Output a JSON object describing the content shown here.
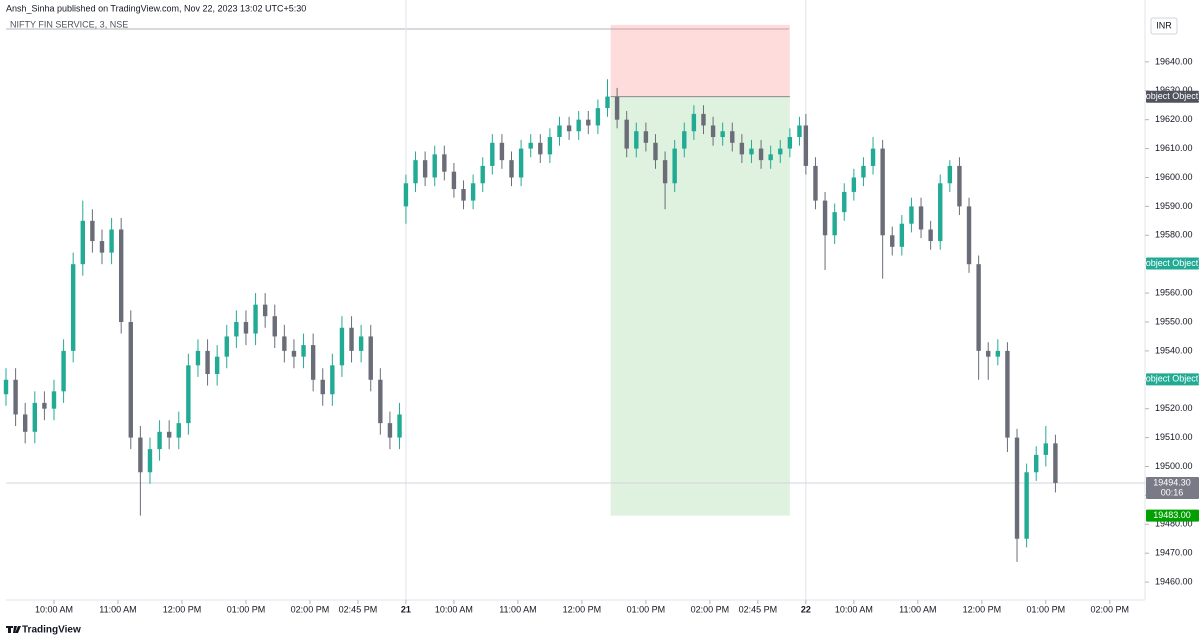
{
  "header": "Ansh_Sinha published on TradingView.com, Nov 22, 2023 13:02 UTC+5:30",
  "footer": "TradingView",
  "chart_data": {
    "type": "candlestick",
    "symbol": "NIFTY FIN SERVICE, 3, NSE",
    "currency": "INR",
    "up_color": "#22ab94",
    "down_color": "#6a6d78",
    "xlim": [
      0,
      356
    ],
    "ylim": [
      19453.8,
      19653.8
    ],
    "xticks": [
      {
        "value": 15,
        "label": "10:00 AM"
      },
      {
        "value": 35,
        "label": "11:00 AM"
      },
      {
        "value": 55,
        "label": "12:00 PM"
      },
      {
        "value": 75,
        "label": "01:00 PM"
      },
      {
        "value": 95,
        "label": "02:00 PM"
      },
      {
        "value": 110,
        "label": "02:45 PM"
      },
      {
        "value": 125,
        "label": "21"
      },
      {
        "value": 140,
        "label": "10:00 AM"
      },
      {
        "value": 160,
        "label": "11:00 AM"
      },
      {
        "value": 180,
        "label": "12:00 PM"
      },
      {
        "value": 200,
        "label": "01:00 PM"
      },
      {
        "value": 220,
        "label": "02:00 PM"
      },
      {
        "value": 235,
        "label": "02:45 PM"
      },
      {
        "value": 250,
        "label": "22"
      },
      {
        "value": 265,
        "label": "10:00 AM"
      },
      {
        "value": 285,
        "label": "11:00 AM"
      },
      {
        "value": 305,
        "label": "12:00 PM"
      },
      {
        "value": 325,
        "label": "01:00 PM"
      },
      {
        "value": 345,
        "label": "02:00 PM"
      }
    ],
    "session_breaks": [
      125,
      250
    ],
    "yticks": [
      {
        "value": 19460,
        "label": "19460.00"
      },
      {
        "value": 19470,
        "label": "19470.00"
      },
      {
        "value": 19480,
        "label": "19480.00"
      },
      {
        "value": 19490,
        "label": "19490.00"
      },
      {
        "value": 19500,
        "label": "19500.00"
      },
      {
        "value": 19510,
        "label": "19510.00"
      },
      {
        "value": 19520,
        "label": "19520.00"
      },
      {
        "value": 19530,
        "label": "19530.00"
      },
      {
        "value": 19540,
        "label": "19540.00"
      },
      {
        "value": 19550,
        "label": "19550.00"
      },
      {
        "value": 19560,
        "label": "19560.00"
      },
      {
        "value": 19570,
        "label": "19570.00"
      },
      {
        "value": 19580,
        "label": "19580.00"
      },
      {
        "value": 19590,
        "label": "19590.00"
      },
      {
        "value": 19600,
        "label": "19600.00"
      },
      {
        "value": 19610,
        "label": "19610.00"
      },
      {
        "value": 19620,
        "label": "19620.00"
      },
      {
        "value": 19630,
        "label": "19630.00"
      },
      {
        "value": 19640,
        "label": "19640.00"
      }
    ],
    "x": [
      0,
      3,
      6,
      9,
      12,
      15,
      18,
      21,
      24,
      27,
      30,
      33,
      36,
      39,
      42,
      45,
      48,
      51,
      54,
      57,
      60,
      63,
      66,
      69,
      72,
      75,
      78,
      81,
      84,
      87,
      90,
      93,
      96,
      99,
      102,
      105,
      108,
      111,
      114,
      117,
      120,
      123,
      125,
      128,
      131,
      134,
      137,
      140,
      143,
      146,
      149,
      152,
      155,
      158,
      161,
      164,
      167,
      170,
      173,
      176,
      179,
      182,
      185,
      188,
      191,
      194,
      197,
      200,
      203,
      206,
      209,
      212,
      215,
      218,
      221,
      224,
      227,
      230,
      233,
      236,
      239,
      242,
      245,
      248,
      250,
      253,
      256,
      259,
      262,
      265,
      268,
      271,
      274,
      277,
      280,
      283,
      286,
      289,
      292,
      295,
      298,
      301,
      304,
      307,
      310,
      313,
      316,
      319,
      322,
      325,
      328
    ],
    "open": [
      19525,
      19530,
      19518,
      19512,
      19522,
      19520,
      19526,
      19540,
      19570,
      19585,
      19578,
      19574,
      19582,
      19550,
      19510,
      19498,
      19506,
      19512,
      19510,
      19515,
      19535,
      19540,
      19532,
      19538,
      19545,
      19550,
      19546,
      19556,
      19552,
      19545,
      19540,
      19538,
      19542,
      19530,
      19525,
      19535,
      19548,
      19540,
      19545,
      19530,
      19515,
      19510,
      19590,
      19598,
      19606,
      19600,
      19608,
      19602,
      19596,
      19592,
      19598,
      19604,
      19612,
      19606,
      19600,
      19610,
      19612,
      19608,
      19614,
      19618,
      19616,
      19620,
      19618,
      19624,
      19628,
      19620,
      19610,
      19616,
      19612,
      19606,
      19598,
      19610,
      19616,
      19622,
      19618,
      19614,
      19616,
      19612,
      19608,
      19610,
      19606,
      19608,
      19610,
      19614,
      19618,
      19604,
      19592,
      19580,
      19588,
      19595,
      19600,
      19604,
      19610,
      19580,
      19576,
      19584,
      19590,
      19582,
      19578,
      19598,
      19604,
      19590,
      19570,
      19540,
      19538,
      19540,
      19510,
      19475,
      19498,
      19504,
      19508
    ],
    "high": [
      19534,
      19534,
      19522,
      19526,
      19526,
      19530,
      19544,
      19574,
      19592,
      19589,
      19582,
      19586,
      19586,
      19554,
      19514,
      19510,
      19516,
      19516,
      19519,
      19539,
      19544,
      19544,
      19542,
      19549,
      19554,
      19554,
      19560,
      19560,
      19556,
      19549,
      19544,
      19546,
      19546,
      19534,
      19539,
      19552,
      19552,
      19549,
      19549,
      19534,
      19519,
      19522,
      19601,
      19609,
      19609,
      19611,
      19611,
      19605,
      19599,
      19601,
      19607,
      19615,
      19615,
      19609,
      19613,
      19615,
      19615,
      19617,
      19621,
      19621,
      19623,
      19623,
      19627,
      19634,
      19631,
      19623,
      19619,
      19619,
      19615,
      19609,
      19613,
      19619,
      19625,
      19625,
      19621,
      19619,
      19619,
      19615,
      19613,
      19613,
      19611,
      19613,
      19617,
      19621,
      19622,
      19607,
      19595,
      19591,
      19598,
      19603,
      19607,
      19614,
      19613,
      19583,
      19587,
      19593,
      19593,
      19585,
      19601,
      19606,
      19607,
      19593,
      19573,
      19543,
      19544,
      19543,
      19513,
      19501,
      19507,
      19514,
      19511
    ],
    "low": [
      19521,
      19514,
      19508,
      19508,
      19516,
      19516,
      19522,
      19536,
      19566,
      19574,
      19570,
      19570,
      19546,
      19506,
      19483,
      19494,
      19502,
      19506,
      19506,
      19511,
      19531,
      19528,
      19528,
      19534,
      19541,
      19542,
      19542,
      19548,
      19541,
      19536,
      19534,
      19534,
      19526,
      19521,
      19521,
      19531,
      19536,
      19536,
      19526,
      19511,
      19506,
      19506,
      19584,
      19595,
      19597,
      19597,
      19599,
      19593,
      19589,
      19589,
      19595,
      19601,
      19603,
      19597,
      19597,
      19607,
      19605,
      19605,
      19611,
      19613,
      19613,
      19615,
      19615,
      19621,
      19617,
      19607,
      19607,
      19609,
      19603,
      19589,
      19595,
      19607,
      19613,
      19615,
      19611,
      19611,
      19609,
      19605,
      19605,
      19603,
      19603,
      19605,
      19607,
      19611,
      19601,
      19589,
      19568,
      19577,
      19585,
      19592,
      19597,
      19601,
      19565,
      19573,
      19573,
      19581,
      19579,
      19575,
      19575,
      19595,
      19587,
      19567,
      19530,
      19530,
      19535,
      19505,
      19467,
      19472,
      19495,
      19500,
      19491
    ],
    "close": [
      19530,
      19518,
      19512,
      19522,
      19520,
      19526,
      19540,
      19570,
      19585,
      19578,
      19574,
      19582,
      19550,
      19510,
      19498,
      19506,
      19512,
      19510,
      19515,
      19535,
      19540,
      19532,
      19538,
      19545,
      19550,
      19546,
      19556,
      19552,
      19545,
      19540,
      19538,
      19542,
      19530,
      19525,
      19535,
      19548,
      19540,
      19545,
      19530,
      19515,
      19510,
      19518,
      19598,
      19606,
      19600,
      19608,
      19602,
      19596,
      19592,
      19598,
      19604,
      19612,
      19606,
      19600,
      19610,
      19612,
      19608,
      19614,
      19618,
      19616,
      19620,
      19618,
      19624,
      19628,
      19620,
      19610,
      19616,
      19612,
      19606,
      19598,
      19610,
      19616,
      19622,
      19618,
      19614,
      19616,
      19612,
      19608,
      19610,
      19606,
      19608,
      19610,
      19614,
      19618,
      19604,
      19592,
      19580,
      19588,
      19595,
      19600,
      19604,
      19610,
      19580,
      19576,
      19584,
      19590,
      19582,
      19578,
      19598,
      19604,
      19590,
      19570,
      19540,
      19538,
      19540,
      19510,
      19475,
      19498,
      19504,
      19508,
      19494.3
    ],
    "position": {
      "x": [
        189,
        245
      ],
      "stop": 19652.8,
      "entry": 19627.95,
      "target": 19483
    },
    "last_price": {
      "value": 19494.3,
      "label": "19494.30",
      "color": "#787b86"
    },
    "countdown": "00:16",
    "price_labels": [
      {
        "value": 19627.95,
        "color": "#50535e"
      },
      {
        "value": 19570.25,
        "color": "#22ab94"
      },
      {
        "value": 19530.15,
        "color": "#22ab94"
      },
      {
        "value": 19483,
        "label": "19483.00",
        "color": "#00a000"
      }
    ]
  }
}
